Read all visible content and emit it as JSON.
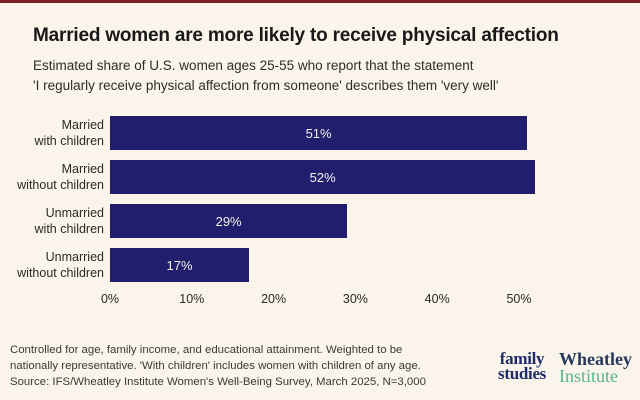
{
  "page": {
    "background_color": "#FAF4EB",
    "top_accent_color": "#7A2128"
  },
  "header": {
    "title": "Married women are more likely to receive physical affection",
    "subtitle_line1": "Estimated share of U.S. women ages 25-55 who report that the statement",
    "subtitle_line2": "'I regularly receive physical affection from someone' describes them 'very well'"
  },
  "chart_data": {
    "type": "bar",
    "orientation": "horizontal",
    "title": "Married women are more likely to receive physical affection",
    "subtitle": "Estimated share of U.S. women ages 25-55 who report that the statement 'I regularly receive physical affection from someone' describes them 'very well'",
    "categories": [
      "Married with children",
      "Married without children",
      "Unmarried with children",
      "Unmarried without children"
    ],
    "category_lines": [
      {
        "line1": "Married",
        "line2": "with children"
      },
      {
        "line1": "Married",
        "line2": "without children"
      },
      {
        "line1": "Unmarried",
        "line2": "with children"
      },
      {
        "line1": "Unmarried",
        "line2": "without children"
      }
    ],
    "values": [
      51,
      52,
      29,
      17
    ],
    "value_labels": [
      "51%",
      "52%",
      "29%",
      "17%"
    ],
    "x_ticks": [
      "0%",
      "10%",
      "20%",
      "30%",
      "40%",
      "50%"
    ],
    "x_tick_values": [
      0,
      10,
      20,
      30,
      40,
      50
    ],
    "xlim": [
      0,
      55
    ],
    "unit": "%",
    "bar_color": "#221E6E",
    "value_label_color": "#F6F1E9",
    "grid": false,
    "legend": false
  },
  "footer": {
    "note_line1": "Controlled for age, family income, and educational attainment. Weighted to be",
    "note_line2": "nationally representative. 'With children' includes women with children of any age.",
    "note_line3": "Source: IFS/Wheatley Institute Women's Well-Being Survey, March 2025, N=3,000",
    "logo_family_line1": "family",
    "logo_family_line2": "studies",
    "logo_wheatley_line1": "Wheatley",
    "logo_wheatley_line2": "Institute"
  }
}
